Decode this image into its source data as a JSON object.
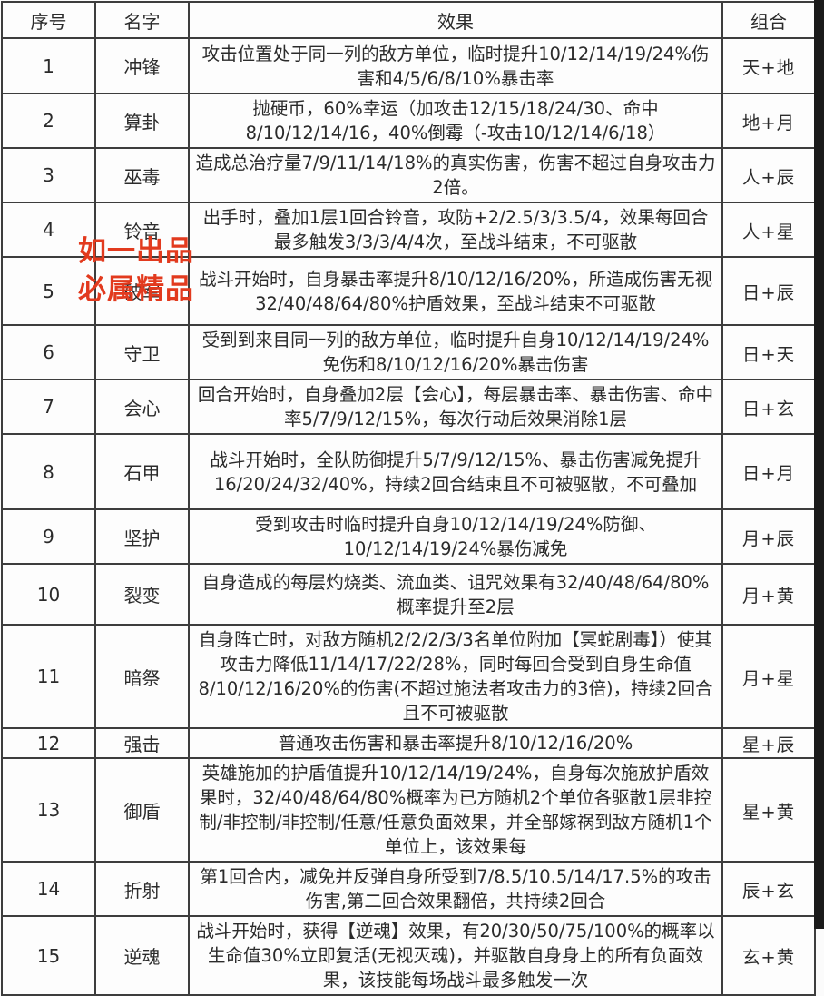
{
  "colors": {
    "watermark_red": "#e23a1e",
    "table_border": "#3d3d3d",
    "text": "#2b2b2b",
    "right_strip": "#1a1a1a"
  },
  "watermark": {
    "line1": "如一出品",
    "line2": "必属精品"
  },
  "table": {
    "headers": {
      "index": "序号",
      "name": "名字",
      "effect": "效果",
      "combo": "组合"
    },
    "rows": [
      {
        "index": "1",
        "name": "冲锋",
        "effect": "攻击位置处于同一列的敌方单位，临时提升10/12/14/19/24%伤害和4/5/6/8/10%暴击率",
        "combo": "天+地"
      },
      {
        "index": "2",
        "name": "算卦",
        "effect": "抛硬币，60%幸运（加攻击12/15/18/24/30、命中8/10/12/14/16，40%倒霉（-攻击10/12/14/6/18）",
        "combo": "地+月"
      },
      {
        "index": "3",
        "name": "巫毒",
        "effect": "造成总治疗量7/9/11/14/18%的真实伤害，伤害不超过自身攻击力2倍。",
        "combo": "人+辰"
      },
      {
        "index": "4",
        "name": "铃音",
        "effect": "出手时，叠加1层1回合铃音，攻防+2/2.5/3/3.5/4，效果每回合最多触发3/3/3/4/4次，至战斗结束，不可驱散",
        "combo": "人+星"
      },
      {
        "index": "5",
        "name": "破军",
        "effect": "战斗开始时，自身暴击率提升8/10/12/16/20%，所造成伤害无视32/40/48/64/80%护盾效果，至战斗结束不可驱散",
        "combo": "日+辰"
      },
      {
        "index": "6",
        "name": "守卫",
        "effect": "受到到来目同一列的敌方单位，临时提升自身10/12/14/19/24%免伤和8/10/12/16/20%暴击伤害",
        "combo": "日+天"
      },
      {
        "index": "7",
        "name": "会心",
        "effect": "回合开始时，自身叠加2层【会心】，每层暴击率、暴击伤害、命中率5/7/9/12/15%，每次行动后效果消除1层",
        "combo": "日+玄"
      },
      {
        "index": "8",
        "name": "石甲",
        "effect": "战斗开始时，全队防御提升5/7/9/12/15%、暴击伤害减免提升16/20/24/32/40%，持续2回合结束且不可被驱散，不可叠加",
        "combo": "日+月"
      },
      {
        "index": "9",
        "name": "坚护",
        "effect": "受到攻击时临时提升自身10/12/14/19/24%防御、10/12/14/19/24%暴伤减免",
        "combo": "月+辰"
      },
      {
        "index": "10",
        "name": "裂变",
        "effect": "自身造成的每层灼烧类、流血类、诅咒效果有32/40/48/64/80%概率提升至2层",
        "combo": "月+黄"
      },
      {
        "index": "11",
        "name": "暗祭",
        "effect": "自身阵亡时，对敌方随机2/2/2/3/3名单位附加【冥蛇剧毒】）使其攻击力降低11/14/17/22/28%，同时每回合受到自身生命值8/10/12/16/20%的伤害(不超过施法者攻击力的3倍)，持续2回合且不可被驱散",
        "combo": "月+星"
      },
      {
        "index": "12",
        "name": "强击",
        "effect": "普通攻击伤害和暴击率提升8/10/12/16/20%",
        "combo": "星+辰"
      },
      {
        "index": "13",
        "name": "御盾",
        "effect": "英雄施加的护盾值提升10/12/14/19/24%，自身每次施放护盾效果时，32/40/48/64/80%概率为已方随机2个单位各驱散1层非控制/非控制/非控制/任意/任意负面效果，并全部嫁祸到敌方随机1个单位上，该效果每",
        "combo": "星+黄"
      },
      {
        "index": "14",
        "name": "折射",
        "effect": "第1回合内，减免并反弹自身所受到7/8.5/10.5/14/17.5%的攻击伤害,第二回合效果翻倍，共持续2回合",
        "combo": "辰+玄"
      },
      {
        "index": "15",
        "name": "逆魂",
        "effect": "战斗开始时，获得【逆魂】效果，有20/30/50/75/100%的概率以生命值30%立即复活(无视灭魂)，并驱散自身身上的所有负面效果，该技能每场战斗最多触发一次",
        "combo": "玄+黄"
      }
    ]
  }
}
